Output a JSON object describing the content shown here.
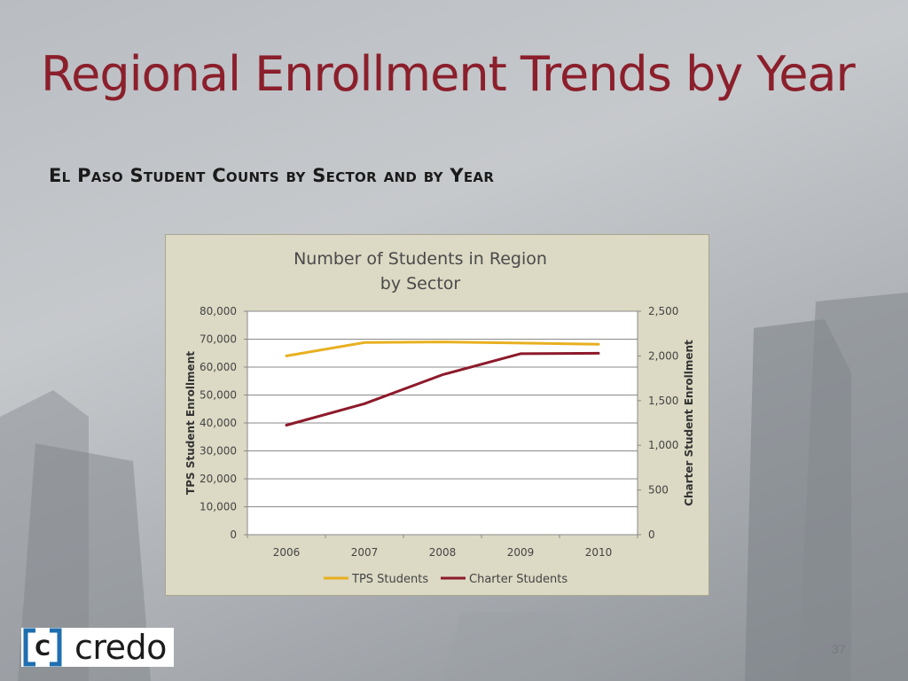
{
  "slide": {
    "title": "Regional Enrollment Trends by Year",
    "subtitle": "El Paso Student Counts by Sector and by Year",
    "page_number": "37"
  },
  "logo": {
    "text": "credo",
    "mark": "C"
  },
  "colors": {
    "title": "#8b1f2b",
    "tps": "#e8b020",
    "charter": "#8c1a2a",
    "plot_bg": "#dcd9c4"
  },
  "chart_data": {
    "type": "line",
    "title_lines": [
      "Number of Students in Region",
      "by Sector"
    ],
    "categories": [
      "2006",
      "2007",
      "2008",
      "2009",
      "2010"
    ],
    "y_left": {
      "label": "TPS Student Enrollment",
      "range": [
        0,
        80000
      ],
      "ticks": [
        "0",
        "10,000",
        "20,000",
        "30,000",
        "40,000",
        "50,000",
        "60,000",
        "70,000",
        "80,000"
      ]
    },
    "y_right": {
      "label": "Charter Student Enrollment",
      "range": [
        0,
        2500
      ],
      "ticks": [
        "0",
        "500",
        "1,000",
        "1,500",
        "2,000",
        "2,500"
      ]
    },
    "series": [
      {
        "name": "TPS Students",
        "axis": "left",
        "color": "#e8b020",
        "values": [
          64000,
          68800,
          69000,
          68600,
          68200
        ]
      },
      {
        "name": "Charter Students",
        "axis": "right",
        "color": "#8c1a2a",
        "values": [
          1225,
          1465,
          1790,
          2025,
          2030
        ]
      }
    ],
    "grid": true,
    "legend": "bottom"
  }
}
